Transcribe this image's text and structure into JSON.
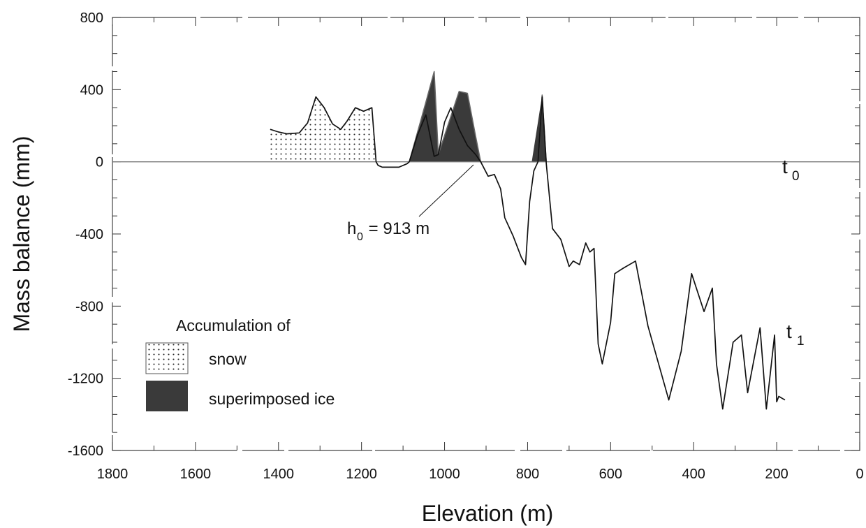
{
  "chart_data": {
    "type": "area",
    "xlabel": "Elevation (m)",
    "ylabel": "Mass balance (mm)",
    "xlim": [
      1800,
      0
    ],
    "ylim": [
      -1600,
      800
    ],
    "x_reversed": true,
    "xticks": [
      1800,
      1600,
      1400,
      1200,
      1000,
      800,
      600,
      400,
      200,
      0
    ],
    "yticks": [
      800,
      400,
      0,
      -400,
      -800,
      -1200,
      -1600
    ],
    "colors": {
      "line": "#111111",
      "superimposed_ice": "#3a3a3a",
      "snow_dots": "#222222",
      "zero_line": "#777777"
    },
    "series": [
      {
        "name": "t1",
        "x": [
          1420,
          1400,
          1380,
          1350,
          1330,
          1310,
          1290,
          1270,
          1250,
          1235,
          1215,
          1195,
          1175,
          1165,
          1160,
          1150,
          1130,
          1110,
          1090,
          1085,
          1065,
          1045,
          1025,
          1015,
          1000,
          985,
          965,
          945,
          925,
          913,
          895,
          880,
          865,
          855,
          835,
          815,
          805,
          795,
          785,
          775,
          765,
          755,
          740,
          720,
          700,
          690,
          675,
          660,
          650,
          640,
          630,
          620,
          600,
          590,
          570,
          540,
          510,
          460,
          430,
          405,
          375,
          355,
          345,
          330,
          305,
          285,
          270,
          240,
          225,
          205,
          200,
          195,
          180
        ],
        "y": [
          180,
          165,
          155,
          160,
          215,
          360,
          300,
          210,
          180,
          225,
          300,
          280,
          300,
          0,
          -20,
          -30,
          -30,
          -30,
          -10,
          0,
          150,
          260,
          30,
          40,
          220,
          300,
          180,
          90,
          40,
          0,
          -80,
          -70,
          -150,
          -310,
          -410,
          -530,
          -570,
          -220,
          -50,
          0,
          360,
          -10,
          -370,
          -430,
          -580,
          -550,
          -570,
          -450,
          -500,
          -480,
          -1010,
          -1120,
          -890,
          -620,
          -590,
          -550,
          -910,
          -1320,
          -1050,
          -620,
          -830,
          -700,
          -1120,
          -1370,
          -1000,
          -960,
          -1280,
          -920,
          -1370,
          -960,
          -1330,
          -1300,
          -1320
        ]
      },
      {
        "name": "t0",
        "x": [
          1085,
          1045,
          1025,
          1015,
          965,
          945,
          925,
          913,
          775,
          765,
          755
        ],
        "y": [
          0,
          330,
          500,
          40,
          390,
          380,
          140,
          0,
          0,
          370,
          0
        ]
      }
    ],
    "areas": [
      {
        "name": "snow",
        "x_range": [
          1420,
          1165
        ],
        "fill": "dotted"
      },
      {
        "name": "superimposed ice",
        "x_ranges": [
          [
            1085,
            913
          ],
          [
            790,
            755
          ]
        ],
        "fill": "solid"
      }
    ],
    "labels": {
      "t0": "t",
      "t0_sub": "0",
      "t1": "t",
      "t1_sub": "1"
    },
    "annotation": {
      "text_h": "h",
      "text_sub": "0",
      "text_rest": " = 913 m",
      "x": 913
    },
    "legend": {
      "title": "Accumulation of",
      "items": [
        {
          "label": "snow",
          "fill": "dotted"
        },
        {
          "label": "superimposed ice",
          "fill": "solid"
        }
      ],
      "position": "bottom-left"
    }
  }
}
